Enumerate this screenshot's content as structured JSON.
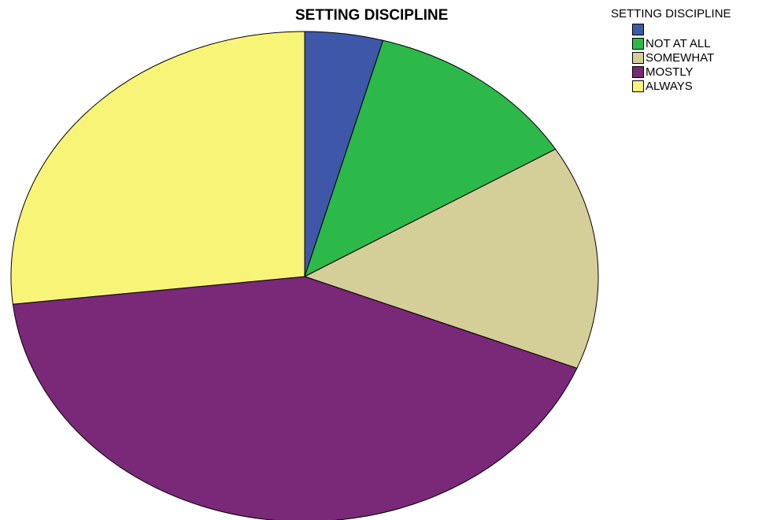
{
  "chart_data": {
    "type": "pie",
    "title": "SETTING DISCIPLINE",
    "legend_title": "SETTING DISCIPLINE",
    "legend_position": "top-right",
    "start": "top",
    "direction": "clockwise",
    "slices": [
      {
        "label": "",
        "value": 4.3,
        "color": "#3f57a8"
      },
      {
        "label": "NOT AT ALL",
        "value": 12.0,
        "color": "#2db84a"
      },
      {
        "label": "SOMEWHAT",
        "value": 14.8,
        "color": "#d4ce98"
      },
      {
        "label": "MOSTLY",
        "value": 42.1,
        "color": "#7a2878"
      },
      {
        "label": "ALWAYS",
        "value": 26.8,
        "color": "#f8f478"
      }
    ]
  }
}
